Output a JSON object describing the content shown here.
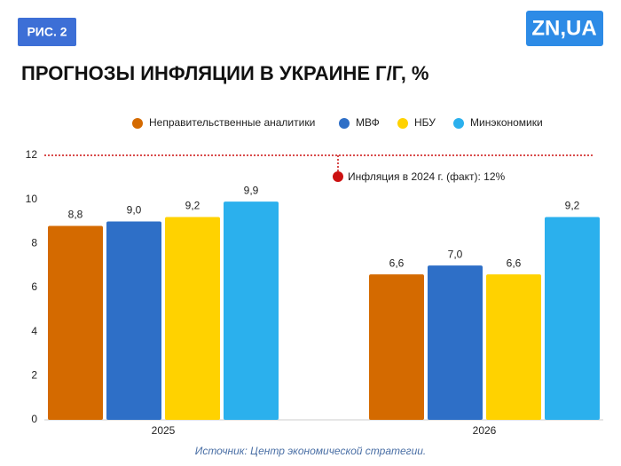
{
  "chart_data": {
    "type": "bar",
    "figure_label": "РИС. 2",
    "logo": "ZN,UA",
    "title": "ПРОГНОЗЫ ИНФЛЯЦИИ В УКРАИНЕ Г/Г, %",
    "categories": [
      "2025",
      "2026"
    ],
    "series": [
      {
        "name": "Неправительственные аналитики",
        "color": "#d46a00",
        "values": [
          8.8,
          6.6
        ],
        "value_labels": [
          "8,8",
          "6,6"
        ]
      },
      {
        "name": "МВФ",
        "color": "#2e6fc7",
        "values": [
          9.0,
          7.0
        ],
        "value_labels": [
          "9,0",
          "7,0"
        ]
      },
      {
        "name": "НБУ",
        "color": "#ffd200",
        "values": [
          9.2,
          6.6
        ],
        "value_labels": [
          "9,2",
          "6,6"
        ]
      },
      {
        "name": "Минэкономики",
        "color": "#2bb0ed",
        "values": [
          9.9,
          9.2
        ],
        "value_labels": [
          "9,9",
          "9,2"
        ]
      }
    ],
    "ylim": [
      0,
      12
    ],
    "yticks": [
      0,
      2,
      4,
      6,
      8,
      10,
      12
    ],
    "grid": false,
    "reference_line": {
      "value": 12,
      "label": "Инфляция в 2024 г. (факт): 12%",
      "color": "#cc1111"
    },
    "source": "Источник: Центр экономической стратегии."
  }
}
